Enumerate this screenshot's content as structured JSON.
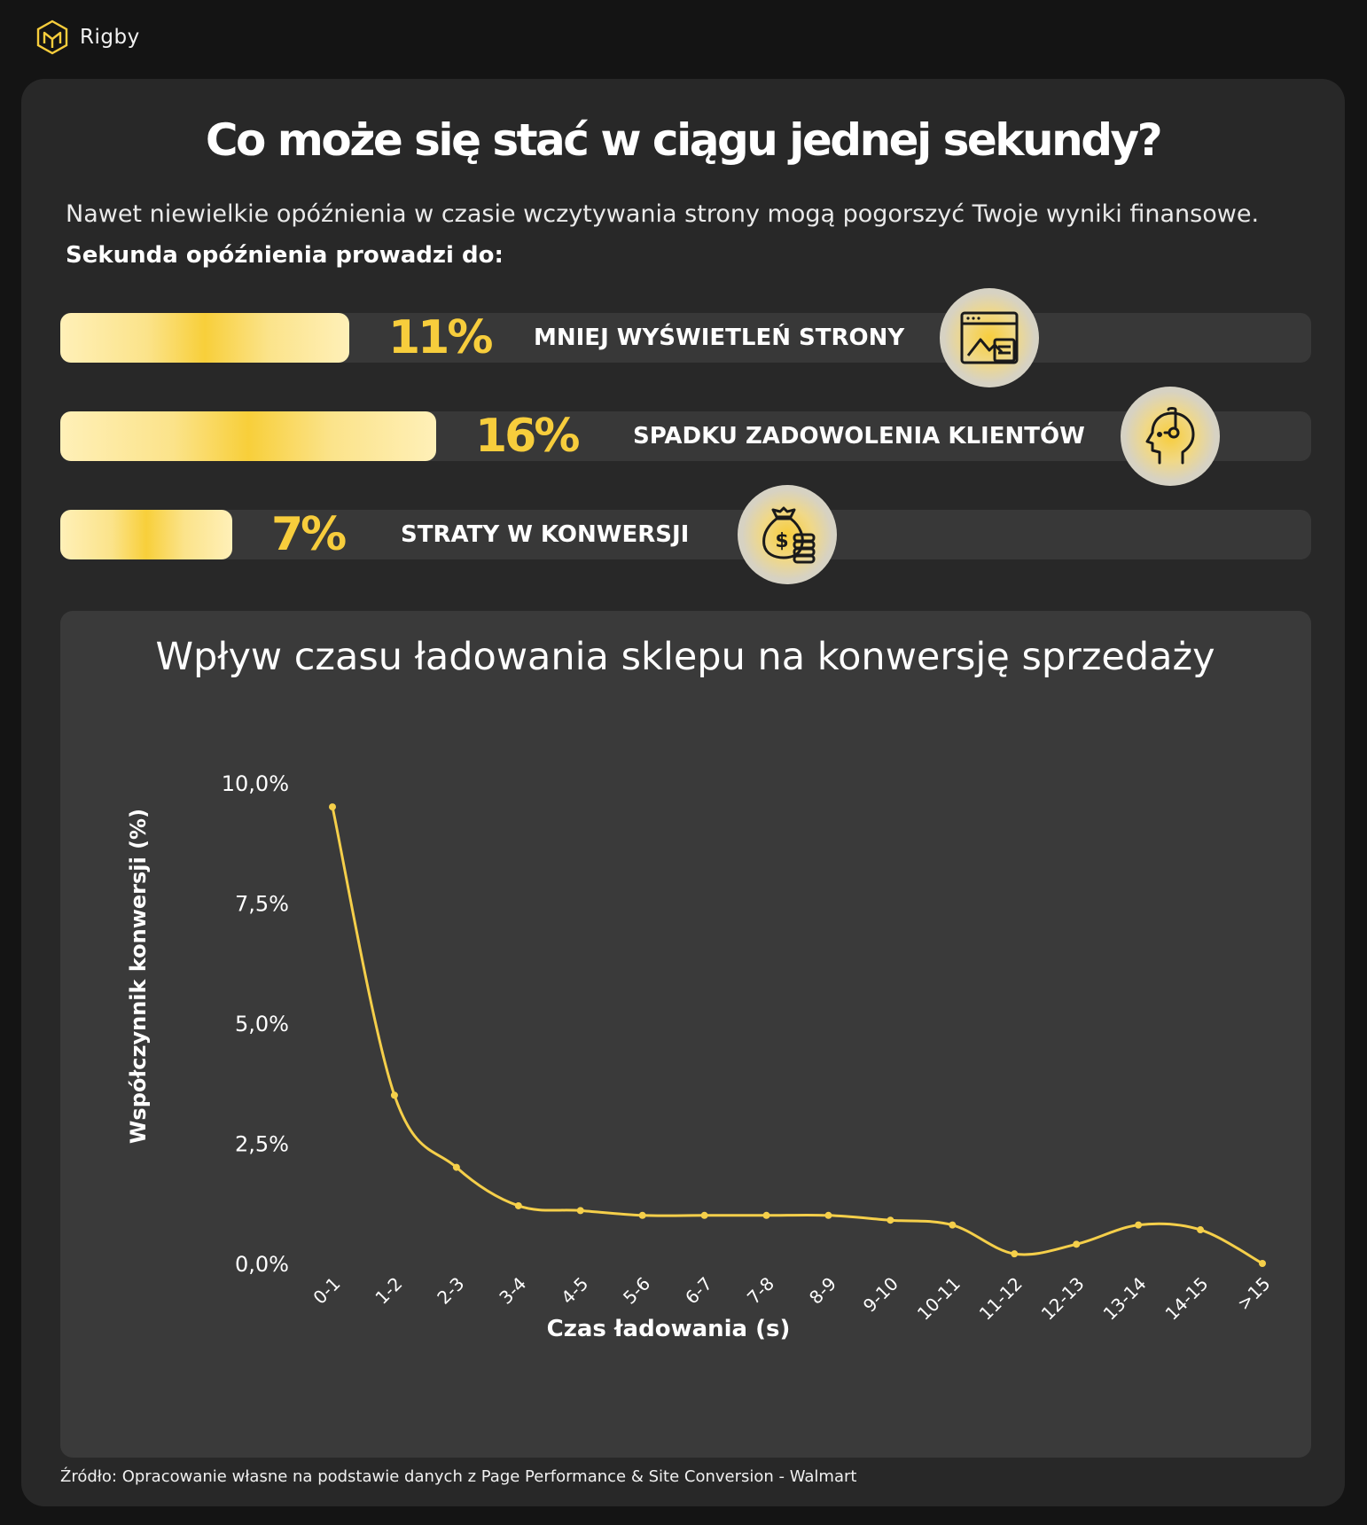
{
  "brand": {
    "name": "Rigby",
    "logo": "hexagon-logo-icon"
  },
  "header": {
    "title": "Co może się stać w ciągu jednej sekundy?",
    "intro": "Nawet niewielkie opóźnienia w czasie wczytywania strony mogą pogorszyć Twoje wyniki finansowe.",
    "lead": "Sekunda opóźnienia prowadzi do:"
  },
  "stats": [
    {
      "percent": "11%",
      "value": 11,
      "label": "MNIEJ WYŚWIETLEŃ STRONY",
      "icon": "browser-window-icon"
    },
    {
      "percent": "16%",
      "value": 16,
      "label": "SPADKU ZADOWOLENIA KLIENTÓW",
      "icon": "head-with-headset-icon"
    },
    {
      "percent": "7%",
      "value": 7,
      "label": "STRATY W KONWERSJI",
      "icon": "money-bag-coins-icon"
    }
  ],
  "colors": {
    "accent": "#f7cd3c",
    "background": "#141414",
    "card": "#282828",
    "panel": "#3a3a3a",
    "line": "#f5cf4a"
  },
  "chart_data": {
    "type": "line",
    "title": "Wpływ czasu ładowania sklepu na konwersję sprzedaży",
    "xlabel": "Czas ładowania (s)",
    "ylabel": "Współczynnik konwersji (%)",
    "categories": [
      "0-1",
      "1-2",
      "2-3",
      "3-4",
      "4-5",
      "5-6",
      "6-7",
      "7-8",
      "8-9",
      "9-10",
      "10-11",
      "11-12",
      "12-13",
      "13-14",
      "14-15",
      ">15"
    ],
    "values": [
      9.5,
      3.5,
      2.0,
      1.2,
      1.1,
      1.0,
      1.0,
      1.0,
      1.0,
      0.9,
      0.8,
      0.2,
      0.4,
      0.8,
      0.7,
      0.0
    ],
    "ylim": [
      0,
      10
    ],
    "yticks": [
      0,
      2.5,
      5,
      7.5,
      10
    ],
    "ytick_labels": [
      "0,0%",
      "2,5%",
      "5,0%",
      "7,5%",
      "10,0%"
    ],
    "grid": false,
    "legend": "none"
  },
  "source": "Źródło: Opracowanie własne na podstawie danych z  Page Performance & Site Conversion - Walmart"
}
